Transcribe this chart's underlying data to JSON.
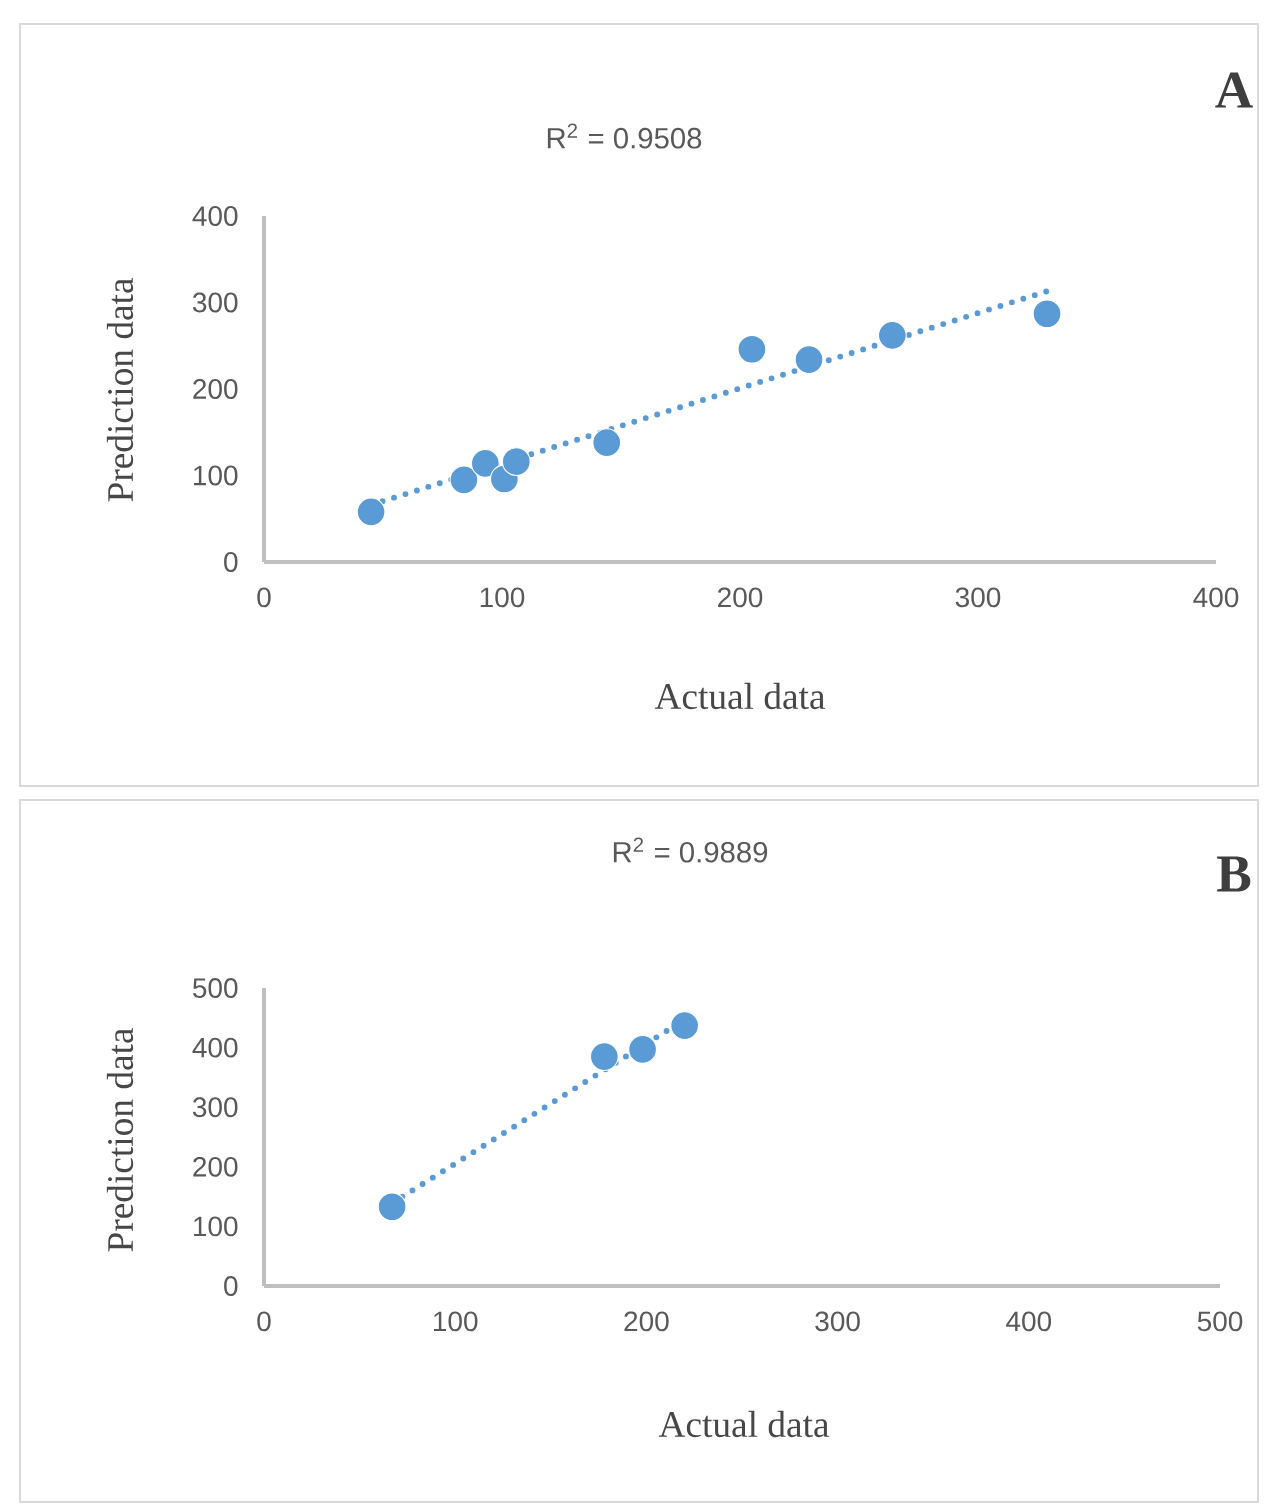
{
  "chart_data": [
    {
      "type": "scatter",
      "title": "A",
      "annotations": [
        "R$^{2}$ = 0.9508"
      ],
      "xlabel": "Actual data",
      "ylabel": "Prediction data",
      "xlim": [
        0,
        400
      ],
      "ylim": [
        0,
        400
      ],
      "xticks": [
        0,
        100,
        200,
        300,
        400
      ],
      "yticks": [
        0,
        100,
        200,
        300,
        400
      ],
      "grid": false,
      "marker": "circle",
      "series": [
        {
          "color": "#5b9bd5",
          "x": [
            45,
            84,
            93,
            101,
            106,
            144,
            205,
            229,
            264,
            329
          ],
          "values": [
            58,
            95,
            114,
            96,
            116,
            138,
            246,
            234,
            262,
            287
          ]
        },
        {
          "type": "line",
          "color": "#5b9bd5",
          "line_style": "dotted",
          "marker": "none",
          "x": [
            45,
            329
          ],
          "values": [
            66,
            313
          ]
        }
      ]
    },
    {
      "type": "scatter",
      "title": "B",
      "annotations": [
        "R$^{2}$ = 0.9889"
      ],
      "xlabel": "Actual data",
      "ylabel": "Prediction data",
      "xlim": [
        0,
        500
      ],
      "ylim": [
        0,
        500
      ],
      "xticks": [
        0,
        100,
        200,
        300,
        400,
        500
      ],
      "yticks": [
        0,
        100,
        200,
        300,
        400,
        500
      ],
      "grid": false,
      "marker": "circle",
      "series": [
        {
          "color": "#5b9bd5",
          "x": [
            67,
            178,
            198,
            220
          ],
          "values": [
            133,
            385,
            397,
            437
          ]
        },
        {
          "type": "line",
          "color": "#5b9bd5",
          "line_style": "dotted",
          "marker": "none",
          "x": [
            67,
            220
          ],
          "values": [
            139,
            447
          ]
        }
      ]
    }
  ]
}
